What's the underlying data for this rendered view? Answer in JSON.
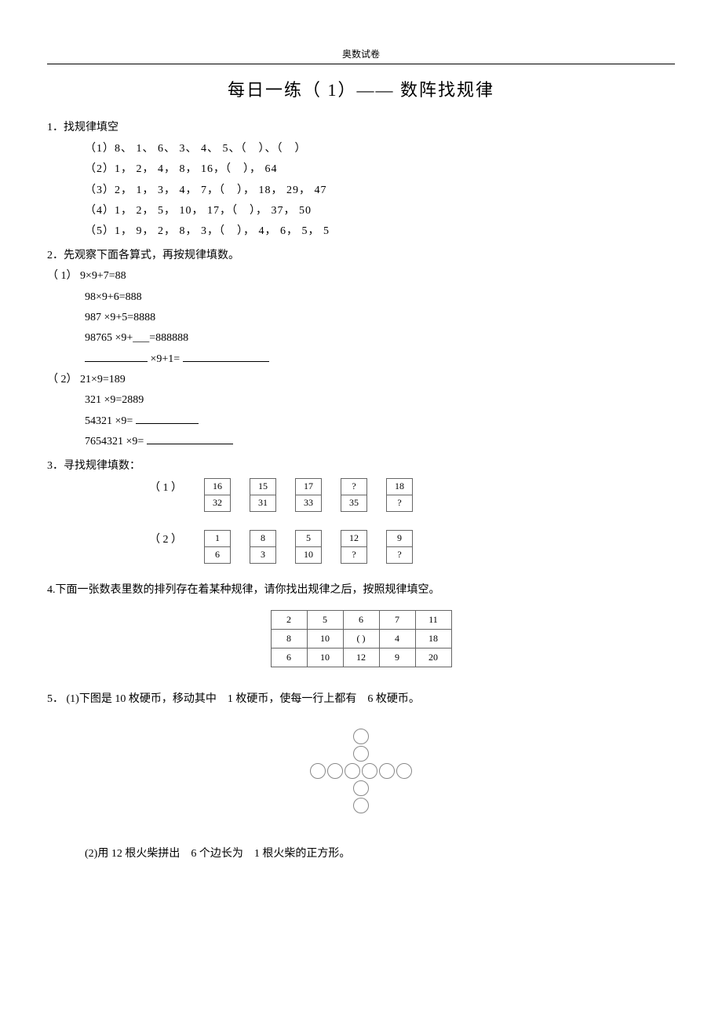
{
  "header": {
    "label": "奥数试卷"
  },
  "title": "每日一练（ 1）—— 数阵找规律",
  "q1": {
    "heading": "1．找规律填空",
    "lines": [
      "（1）8、 1、 6、 3、 4、 5、（　）、（　）",
      "（2）1， 2， 4， 8， 16，（　）， 64",
      "（3）2， 1， 3， 4， 7，（　）， 18， 29， 47",
      "（4）1， 2， 5， 10， 17，（　）， 37， 50",
      "（5）1， 9， 2， 8， 3，（　）， 4， 6， 5， 5"
    ]
  },
  "q2": {
    "heading": "2．先观察下面各算式，再按规律填数。",
    "sub1_label": "（ 1）",
    "sub1_lines": [
      "9×9+7=88",
      "98×9+6=888",
      "987 ×9+5=8888",
      "98765 ×9+___=888888"
    ],
    "sub1_blank_prefix": "",
    "sub1_blank_mid": "×9+1=",
    "sub2_label": "（ 2）",
    "sub2_lines": [
      "21×9=189",
      "321 ×9=2889"
    ],
    "sub2_blank1_prefix": "54321 ×9=",
    "sub2_blank2_prefix": "7654321 ×9="
  },
  "q3": {
    "heading": "3．寻找规律填数：",
    "sub1_label": "（ 1 ）",
    "sub1_pairs": [
      [
        "16",
        "32"
      ],
      [
        "15",
        "31"
      ],
      [
        "17",
        "33"
      ],
      [
        "?",
        "35"
      ],
      [
        "18",
        "?"
      ]
    ],
    "sub2_label": "（ 2 ）",
    "sub2_pairs": [
      [
        "1",
        "6"
      ],
      [
        "8",
        "3"
      ],
      [
        "5",
        "10"
      ],
      [
        "12",
        "?"
      ],
      [
        "9",
        "?"
      ]
    ]
  },
  "q4": {
    "heading": "4.下面一张数表里数的排列存在着某种规律，请你找出规律之后，按照规律填空。",
    "rows": [
      [
        "2",
        "5",
        "6",
        "7",
        "11"
      ],
      [
        "8",
        "10",
        "(  )",
        "4",
        "18"
      ],
      [
        "6",
        "10",
        "12",
        "9",
        "20"
      ]
    ]
  },
  "q5": {
    "heading_parts": [
      "5． (1)下图是  10 枚硬币，移动其中　1 枚硬币，使每一行上都有　6 枚硬币。"
    ],
    "sub2": "(2)用 12 根火柴拼出　6 个边长为　1 根火柴的正方形。"
  },
  "colors": {
    "text": "#000000",
    "border": "#666666",
    "coin_border": "#888888",
    "bg": "#ffffff"
  }
}
